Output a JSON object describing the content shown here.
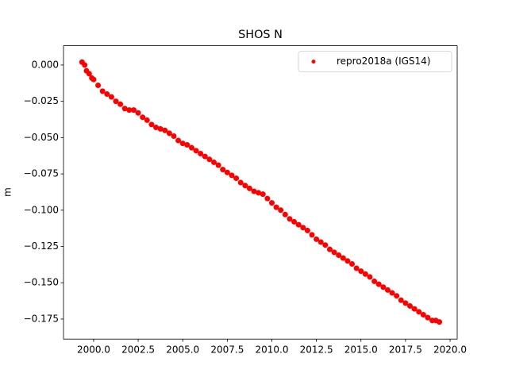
{
  "chart_data": {
    "type": "scatter",
    "title": "SHOS N",
    "y_label": "m",
    "legend_position": "upper right",
    "series": [
      {
        "name": "repro2018a (IGS14)",
        "color": "#ff0000",
        "x": [
          1999.35,
          1999.5,
          1999.6,
          1999.75,
          1999.9,
          2000.0,
          2000.25,
          2000.5,
          2000.75,
          2001.0,
          2001.25,
          2001.5,
          2001.75,
          2002.0,
          2002.25,
          2002.5,
          2002.75,
          2003.0,
          2003.25,
          2003.5,
          2003.75,
          2004.0,
          2004.25,
          2004.5,
          2004.75,
          2005.0,
          2005.25,
          2005.5,
          2005.75,
          2006.0,
          2006.25,
          2006.5,
          2006.75,
          2007.0,
          2007.25,
          2007.5,
          2007.75,
          2008.0,
          2008.25,
          2008.5,
          2008.75,
          2009.0,
          2009.25,
          2009.5,
          2009.75,
          2010.0,
          2010.25,
          2010.5,
          2010.75,
          2011.0,
          2011.25,
          2011.5,
          2011.75,
          2012.0,
          2012.25,
          2012.5,
          2012.75,
          2013.0,
          2013.25,
          2013.5,
          2013.75,
          2014.0,
          2014.25,
          2014.5,
          2014.75,
          2015.0,
          2015.25,
          2015.5,
          2015.75,
          2016.0,
          2016.25,
          2016.5,
          2016.75,
          2017.0,
          2017.25,
          2017.5,
          2017.75,
          2018.0,
          2018.25,
          2018.5,
          2018.75,
          2019.0,
          2019.2,
          2019.4
        ],
        "values": [
          0.002,
          0.0,
          -0.004,
          -0.006,
          -0.009,
          -0.01,
          -0.014,
          -0.018,
          -0.02,
          -0.022,
          -0.025,
          -0.027,
          -0.03,
          -0.031,
          -0.031,
          -0.033,
          -0.036,
          -0.038,
          -0.041,
          -0.043,
          -0.044,
          -0.045,
          -0.047,
          -0.049,
          -0.052,
          -0.054,
          -0.055,
          -0.057,
          -0.059,
          -0.061,
          -0.063,
          -0.065,
          -0.067,
          -0.069,
          -0.072,
          -0.074,
          -0.076,
          -0.078,
          -0.081,
          -0.083,
          -0.085,
          -0.087,
          -0.088,
          -0.089,
          -0.092,
          -0.095,
          -0.098,
          -0.1,
          -0.103,
          -0.106,
          -0.108,
          -0.11,
          -0.112,
          -0.114,
          -0.117,
          -0.12,
          -0.122,
          -0.124,
          -0.127,
          -0.129,
          -0.131,
          -0.133,
          -0.135,
          -0.137,
          -0.14,
          -0.142,
          -0.144,
          -0.146,
          -0.149,
          -0.151,
          -0.153,
          -0.155,
          -0.157,
          -0.159,
          -0.162,
          -0.164,
          -0.166,
          -0.168,
          -0.17,
          -0.172,
          -0.174,
          -0.176,
          -0.176,
          -0.177
        ]
      }
    ],
    "xlim": [
      1998.31,
      2020.4
    ],
    "ylim": [
      -0.1888,
      0.0133
    ],
    "xticks": [
      {
        "value": 2000,
        "label": "2000.0"
      },
      {
        "value": 2002.5,
        "label": "2002.5"
      },
      {
        "value": 2005,
        "label": "2005.0"
      },
      {
        "value": 2007.5,
        "label": "2007.5"
      },
      {
        "value": 2010,
        "label": "2010.0"
      },
      {
        "value": 2012.5,
        "label": "2012.5"
      },
      {
        "value": 2015,
        "label": "2015.0"
      },
      {
        "value": 2017.5,
        "label": "2017.5"
      },
      {
        "value": 2020,
        "label": "2020.0"
      }
    ],
    "yticks": [
      {
        "value": 0,
        "label": "0.000"
      },
      {
        "value": -0.025,
        "label": "−0.025"
      },
      {
        "value": -0.05,
        "label": "−0.050"
      },
      {
        "value": -0.075,
        "label": "−0.075"
      },
      {
        "value": -0.1,
        "label": "−0.100"
      },
      {
        "value": -0.125,
        "label": "−0.125"
      },
      {
        "value": -0.15,
        "label": "−0.150"
      },
      {
        "value": -0.175,
        "label": "−0.175"
      }
    ]
  }
}
